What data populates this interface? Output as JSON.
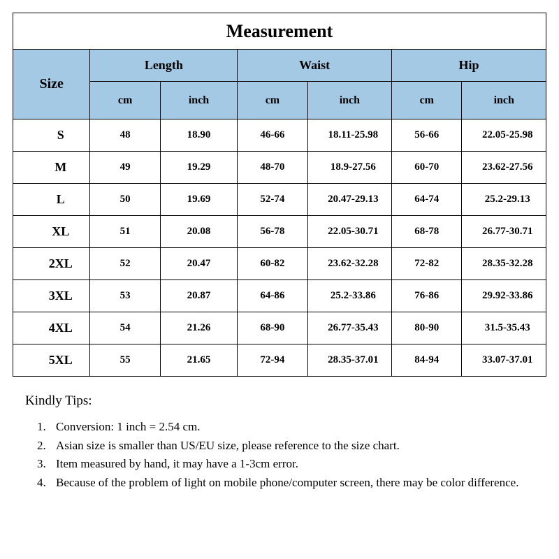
{
  "title": "Measurement",
  "header_bg": "#a3c9e5",
  "border_color": "#000000",
  "columns": {
    "size_label": "Size",
    "groups": [
      "Length",
      "Waist",
      "Hip"
    ],
    "units": [
      "cm",
      "inch",
      "cm",
      "inch",
      "cm",
      "inch"
    ]
  },
  "rows": [
    {
      "size": "S",
      "cells": [
        "48",
        "18.90",
        "46-66",
        "18.11-25.98",
        "56-66",
        "22.05-25.98"
      ]
    },
    {
      "size": "M",
      "cells": [
        "49",
        "19.29",
        "48-70",
        "18.9-27.56",
        "60-70",
        "23.62-27.56"
      ]
    },
    {
      "size": "L",
      "cells": [
        "50",
        "19.69",
        "52-74",
        "20.47-29.13",
        "64-74",
        "25.2-29.13"
      ]
    },
    {
      "size": "XL",
      "cells": [
        "51",
        "20.08",
        "56-78",
        "22.05-30.71",
        "68-78",
        "26.77-30.71"
      ]
    },
    {
      "size": "2XL",
      "cells": [
        "52",
        "20.47",
        "60-82",
        "23.62-32.28",
        "72-82",
        "28.35-32.28"
      ]
    },
    {
      "size": "3XL",
      "cells": [
        "53",
        "20.87",
        "64-86",
        "25.2-33.86",
        "76-86",
        "29.92-33.86"
      ]
    },
    {
      "size": "4XL",
      "cells": [
        "54",
        "21.26",
        "68-90",
        "26.77-35.43",
        "80-90",
        "31.5-35.43"
      ]
    },
    {
      "size": "5XL",
      "cells": [
        "55",
        "21.65",
        "72-94",
        "28.35-37.01",
        "84-94",
        "33.07-37.01"
      ]
    }
  ],
  "tips": {
    "title": "Kindly Tips:",
    "items": [
      "Conversion: 1 inch = 2.54 cm.",
      "Asian size is smaller than US/EU size, please reference to the size chart.",
      "Item measured by hand, it may have a 1-3cm error.",
      "Because of the problem of light on mobile phone/computer screen, there may be color difference."
    ]
  }
}
